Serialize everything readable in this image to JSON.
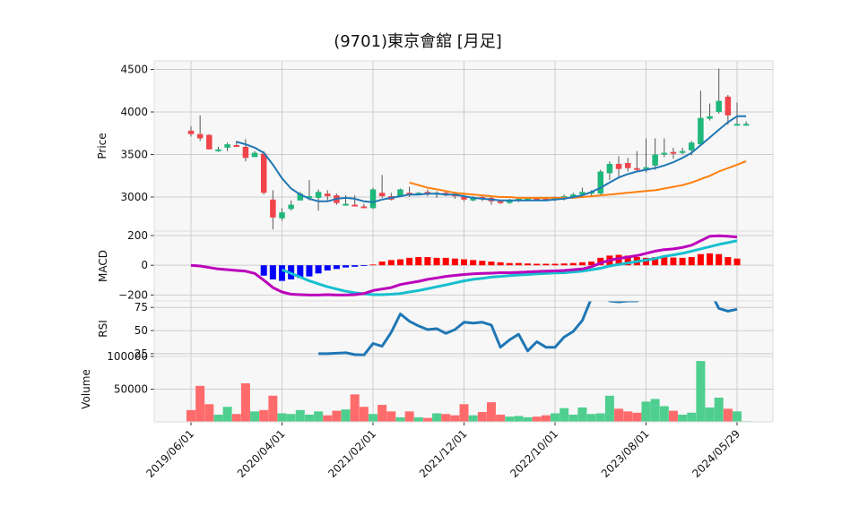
{
  "chart_data": {
    "type": "candlestick",
    "title": "(9701)東京會舘 [月足]",
    "colors": {
      "up": "#1db87a",
      "down": "#f0444a",
      "ma_short": "#1f77b4",
      "ma_long": "#ff7f0e",
      "macd": "#bb00bb",
      "signal": "#17becf",
      "hist_pos": "#ff0000",
      "hist_neg": "#0000ff",
      "rsi": "#1f77b4",
      "vol_up": "#4fcf8f",
      "vol_down": "#ff6b6b",
      "panel_bg": "#f7f7f7",
      "grid": "#cccccc"
    },
    "x_tick_labels": [
      "2019/06/01",
      "2020/04/01",
      "2021/02/01",
      "2021/12/01",
      "2022/10/01",
      "2023/08/01",
      "2024/05/29"
    ],
    "x_tick_index": [
      0,
      10,
      20,
      30,
      40,
      50,
      60
    ],
    "price_panel": {
      "ylabel": "Price",
      "ylim": [
        2600,
        4600
      ],
      "yticks": [
        3000,
        3500,
        4000,
        4500
      ],
      "candles": [
        [
          3780,
          3830,
          3710,
          3740
        ],
        [
          3740,
          3960,
          3660,
          3690
        ],
        [
          3730,
          3740,
          3560,
          3560
        ],
        [
          3560,
          3590,
          3530,
          3560
        ],
        [
          3580,
          3640,
          3540,
          3620
        ],
        [
          3610,
          3660,
          3590,
          3600
        ],
        [
          3590,
          3680,
          3420,
          3460
        ],
        [
          3470,
          3540,
          3470,
          3520
        ],
        [
          3510,
          3540,
          3030,
          3050
        ],
        [
          2970,
          3080,
          2620,
          2760
        ],
        [
          2750,
          2870,
          2720,
          2820
        ],
        [
          2860,
          2960,
          2840,
          2910
        ],
        [
          2960,
          3060,
          2960,
          3040
        ],
        [
          3010,
          3200,
          2960,
          3010
        ],
        [
          2990,
          3090,
          2840,
          3060
        ],
        [
          3040,
          3080,
          2960,
          3010
        ],
        [
          3020,
          3040,
          2910,
          2930
        ],
        [
          2920,
          3020,
          2900,
          2920
        ],
        [
          2910,
          3020,
          2890,
          2900
        ],
        [
          2890,
          2920,
          2870,
          2880
        ],
        [
          2870,
          3110,
          2860,
          3090
        ],
        [
          3050,
          3260,
          2990,
          3010
        ],
        [
          3010,
          3050,
          2960,
          2970
        ],
        [
          3010,
          3100,
          3000,
          3090
        ],
        [
          3050,
          3120,
          3000,
          3020
        ],
        [
          3030,
          3060,
          3020,
          3050
        ],
        [
          3060,
          3090,
          3010,
          3030
        ],
        [
          3030,
          3070,
          2990,
          3050
        ],
        [
          3050,
          3080,
          3010,
          3020
        ],
        [
          3030,
          3060,
          2980,
          3020
        ],
        [
          3000,
          3040,
          2950,
          2970
        ],
        [
          2960,
          3010,
          2950,
          2990
        ],
        [
          3000,
          3020,
          2950,
          2980
        ],
        [
          2990,
          3020,
          2910,
          2950
        ],
        [
          2950,
          2970,
          2920,
          2930
        ],
        [
          2930,
          2980,
          2920,
          2960
        ],
        [
          2960,
          3000,
          2940,
          2980
        ],
        [
          2980,
          3000,
          2950,
          2990
        ],
        [
          2990,
          3000,
          2960,
          2980
        ],
        [
          2980,
          3000,
          2950,
          2970
        ],
        [
          2970,
          3010,
          2950,
          2990
        ],
        [
          2980,
          3030,
          2960,
          3010
        ],
        [
          3000,
          3050,
          2990,
          3030
        ],
        [
          3030,
          3110,
          3010,
          3060
        ],
        [
          3060,
          3080,
          3020,
          3060
        ],
        [
          3040,
          3320,
          3030,
          3300
        ],
        [
          3280,
          3420,
          3200,
          3390
        ],
        [
          3390,
          3480,
          3230,
          3330
        ],
        [
          3400,
          3460,
          3300,
          3340
        ],
        [
          3340,
          3540,
          3300,
          3330
        ],
        [
          3330,
          3690,
          3290,
          3350
        ],
        [
          3370,
          3690,
          3320,
          3500
        ],
        [
          3510,
          3690,
          3470,
          3520
        ],
        [
          3530,
          3580,
          3450,
          3520
        ],
        [
          3520,
          3580,
          3500,
          3540
        ],
        [
          3550,
          3660,
          3490,
          3640
        ],
        [
          3620,
          4250,
          3600,
          3930
        ],
        [
          3920,
          4100,
          3900,
          3950
        ],
        [
          4000,
          4510,
          3980,
          4130
        ],
        [
          4180,
          4200,
          3850,
          3960
        ],
        [
          3860,
          4110,
          3850,
          3860
        ],
        [
          3860,
          3890,
          3840,
          3860
        ]
      ],
      "ma_short": [
        null,
        null,
        null,
        null,
        null,
        3650,
        3620,
        3580,
        3520,
        3380,
        3220,
        3100,
        3030,
        2980,
        2950,
        2950,
        2980,
        2990,
        2980,
        2950,
        2940,
        2970,
        2990,
        3010,
        3030,
        3030,
        3040,
        3040,
        3030,
        3030,
        3010,
        2990,
        2980,
        2970,
        2960,
        2960,
        2960,
        2960,
        2960,
        2960,
        2970,
        2980,
        3000,
        3020,
        3060,
        3110,
        3170,
        3230,
        3270,
        3300,
        3320,
        3340,
        3370,
        3410,
        3460,
        3520,
        3610,
        3700,
        3790,
        3880,
        3950,
        3950
      ],
      "ma_long": [
        null,
        null,
        null,
        null,
        null,
        null,
        null,
        null,
        null,
        null,
        null,
        null,
        null,
        null,
        null,
        null,
        null,
        null,
        null,
        null,
        null,
        null,
        null,
        null,
        3170,
        3140,
        3110,
        3090,
        3070,
        3050,
        3040,
        3030,
        3020,
        3010,
        3000,
        3000,
        2990,
        2990,
        2990,
        2990,
        2990,
        2990,
        2990,
        3000,
        3010,
        3020,
        3030,
        3040,
        3050,
        3060,
        3070,
        3080,
        3100,
        3120,
        3140,
        3170,
        3210,
        3250,
        3300,
        3340,
        3380,
        3420
      ]
    },
    "macd_panel": {
      "ylabel": "MACD",
      "ylim": [
        -240,
        230
      ],
      "yticks": [
        -200,
        0,
        200
      ],
      "macd": [
        0,
        -5,
        -15,
        -25,
        -30,
        -35,
        -40,
        -55,
        -100,
        -150,
        -180,
        -195,
        -198,
        -200,
        -200,
        -198,
        -200,
        -200,
        -198,
        -190,
        -170,
        -160,
        -150,
        -130,
        -118,
        -108,
        -95,
        -85,
        -75,
        -68,
        -62,
        -58,
        -55,
        -53,
        -50,
        -50,
        -48,
        -45,
        -42,
        -40,
        -38,
        -35,
        -30,
        -25,
        -10,
        15,
        35,
        45,
        55,
        65,
        80,
        95,
        105,
        110,
        120,
        135,
        165,
        195,
        198,
        195,
        190,
        0
      ],
      "signal": [
        null,
        null,
        null,
        null,
        null,
        null,
        null,
        null,
        null,
        null,
        -30,
        -55,
        -80,
        -105,
        -125,
        -145,
        -160,
        -175,
        -185,
        -192,
        -198,
        -198,
        -195,
        -190,
        -180,
        -170,
        -158,
        -145,
        -132,
        -118,
        -105,
        -95,
        -88,
        -80,
        -75,
        -70,
        -65,
        -62,
        -58,
        -55,
        -52,
        -50,
        -45,
        -40,
        -30,
        -20,
        -5,
        5,
        15,
        25,
        35,
        45,
        60,
        70,
        80,
        95,
        110,
        125,
        140,
        152,
        165,
        0
      ],
      "hist": [
        null,
        null,
        null,
        null,
        null,
        null,
        null,
        null,
        -70,
        -95,
        -105,
        -95,
        -85,
        -75,
        -55,
        -35,
        -25,
        -15,
        -10,
        -5,
        5,
        25,
        35,
        40,
        50,
        55,
        55,
        50,
        50,
        45,
        40,
        35,
        30,
        25,
        20,
        15,
        15,
        12,
        10,
        10,
        10,
        12,
        15,
        20,
        25,
        50,
        65,
        70,
        65,
        55,
        50,
        55,
        55,
        52,
        50,
        55,
        75,
        80,
        75,
        55,
        45,
        0
      ]
    },
    "rsi_panel": {
      "ylabel": "RSI",
      "ylim": [
        22,
        82
      ],
      "yticks": [
        25,
        50,
        75
      ],
      "rsi": [
        null,
        null,
        null,
        null,
        null,
        null,
        null,
        null,
        null,
        null,
        null,
        null,
        null,
        null,
        25,
        25,
        25.5,
        26,
        24,
        23.5,
        36,
        33,
        48,
        68,
        60,
        55,
        51,
        52,
        47,
        51,
        59,
        58,
        59,
        56,
        32,
        40,
        46,
        28,
        38,
        32,
        32,
        43,
        49,
        61,
        85,
        88,
        82,
        81,
        82,
        82,
        86,
        86,
        84,
        85,
        88,
        92,
        93,
        93,
        74,
        71,
        73,
        0
      ]
    },
    "volume_panel": {
      "ylabel": "Volume",
      "ylim": [
        0,
        100000
      ],
      "yticks": [
        50000,
        100000
      ],
      "volume": [
        18000,
        55000,
        27000,
        11000,
        23000,
        12000,
        59000,
        16000,
        18000,
        40000,
        13000,
        12000,
        18000,
        11000,
        16000,
        10000,
        17000,
        19000,
        42000,
        23000,
        12000,
        26000,
        16000,
        7000,
        16000,
        7000,
        6000,
        13000,
        12000,
        10000,
        27000,
        10000,
        15000,
        30000,
        11000,
        8000,
        9000,
        7000,
        8000,
        10000,
        13000,
        21000,
        11000,
        22000,
        12000,
        13000,
        40000,
        20000,
        16000,
        14000,
        31000,
        35000,
        24000,
        17000,
        11000,
        14000,
        93000,
        22000,
        37000,
        20000,
        16000,
        1000
      ]
    }
  }
}
